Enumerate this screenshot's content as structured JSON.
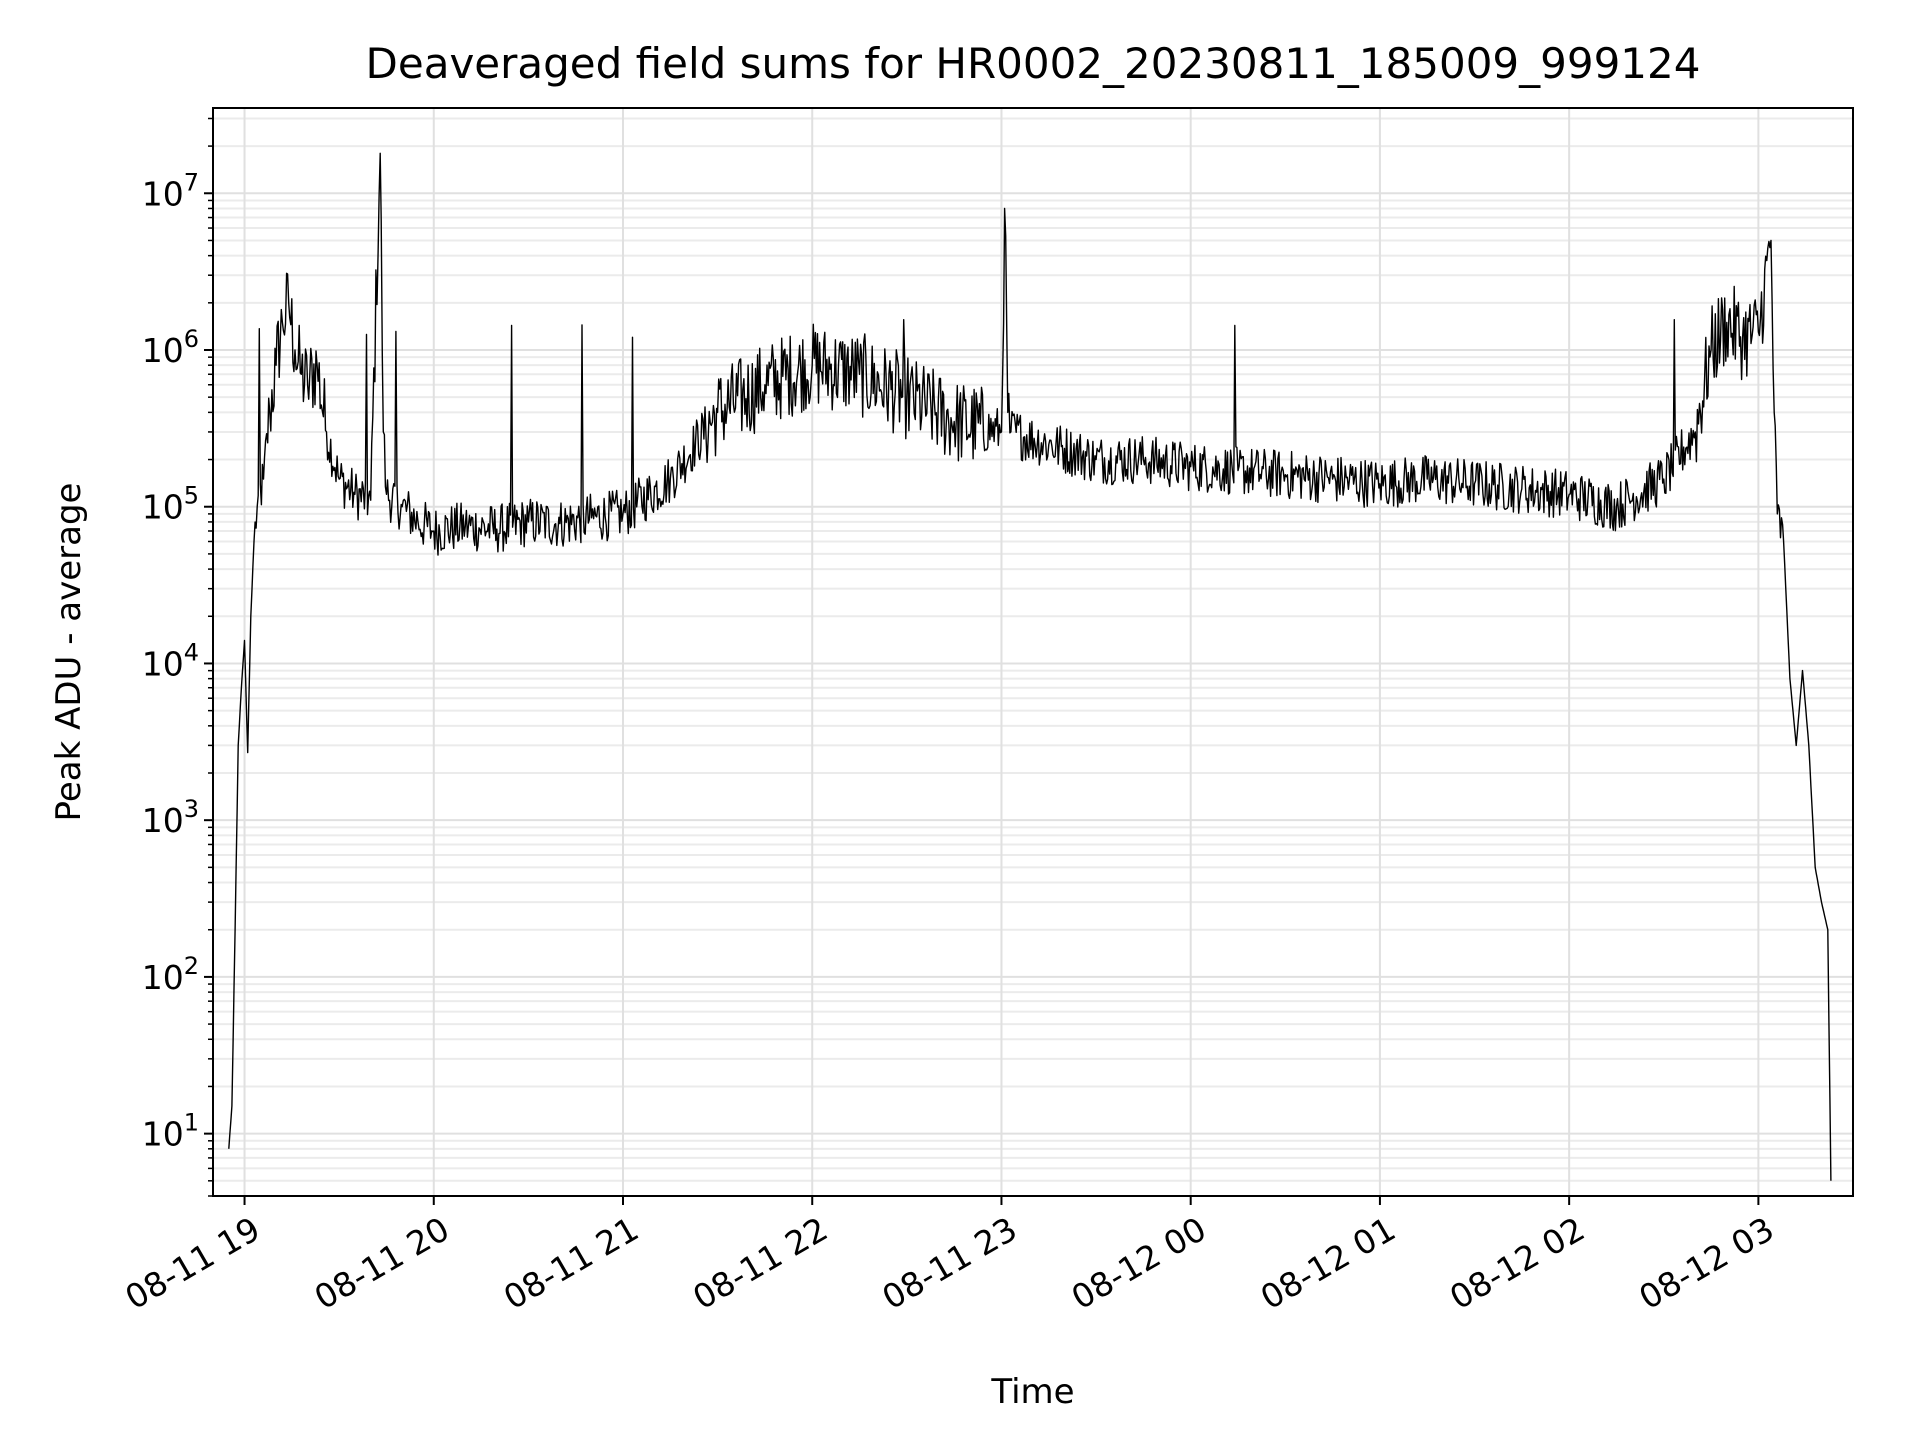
{
  "chart_data": {
    "type": "line",
    "title": "Deaveraged field sums for HR0002_20230811_185009_999124",
    "xlabel": "Time",
    "ylabel": "Peak ADU - average",
    "yscale": "log",
    "grid": true,
    "xlim": [
      "2023-08-11 18:50",
      "2023-08-12 03:30"
    ],
    "ylim": [
      4,
      35000000
    ],
    "x_ticks": [
      "08-11 19",
      "08-11 20",
      "08-11 21",
      "08-11 22",
      "08-11 23",
      "08-12 00",
      "08-12 01",
      "08-12 02",
      "08-12 03"
    ],
    "y_ticks": [
      {
        "base": "10",
        "exp": "1",
        "value": 10
      },
      {
        "base": "10",
        "exp": "2",
        "value": 100
      },
      {
        "base": "10",
        "exp": "3",
        "value": 1000
      },
      {
        "base": "10",
        "exp": "4",
        "value": 10000
      },
      {
        "base": "10",
        "exp": "5",
        "value": 100000
      },
      {
        "base": "10",
        "exp": "6",
        "value": 1000000
      },
      {
        "base": "10",
        "exp": "7",
        "value": 10000000
      }
    ],
    "line_color": "#000000",
    "series": [
      {
        "x": [
          "2023-08-11 18:55",
          "2023-08-11 18:56",
          "2023-08-11 18:57",
          "2023-08-11 18:58",
          "2023-08-11 18:59",
          "2023-08-11 19:00",
          "2023-08-11 19:01",
          "2023-08-11 19:02",
          "2023-08-11 19:03",
          "2023-08-11 19:04",
          "2023-08-11 19:06",
          "2023-08-11 19:08",
          "2023-08-11 19:10",
          "2023-08-11 19:12",
          "2023-08-11 19:14",
          "2023-08-11 19:16",
          "2023-08-11 19:18",
          "2023-08-11 19:20",
          "2023-08-11 19:23",
          "2023-08-11 19:26",
          "2023-08-11 19:30",
          "2023-08-11 19:35",
          "2023-08-11 19:40",
          "2023-08-11 19:43",
          "2023-08-11 19:44",
          "2023-08-11 19:45",
          "2023-08-11 19:50",
          "2023-08-11 19:55",
          "2023-08-11 20:00",
          "2023-08-11 20:10",
          "2023-08-11 20:20",
          "2023-08-11 20:30",
          "2023-08-11 20:40",
          "2023-08-11 20:50",
          "2023-08-11 21:00",
          "2023-08-11 21:15",
          "2023-08-11 21:30",
          "2023-08-11 21:45",
          "2023-08-11 22:00",
          "2023-08-11 22:15",
          "2023-08-11 22:30",
          "2023-08-11 22:45",
          "2023-08-11 23:00",
          "2023-08-11 23:01",
          "2023-08-11 23:02",
          "2023-08-11 23:03",
          "2023-08-11 23:15",
          "2023-08-11 23:30",
          "2023-08-11 23:45",
          "2023-08-12 00:00",
          "2023-08-12 00:15",
          "2023-08-12 00:30",
          "2023-08-12 00:45",
          "2023-08-12 01:00",
          "2023-08-12 01:15",
          "2023-08-12 01:30",
          "2023-08-12 01:45",
          "2023-08-12 02:00",
          "2023-08-12 02:15",
          "2023-08-12 02:30",
          "2023-08-12 02:40",
          "2023-08-12 02:45",
          "2023-08-12 02:50",
          "2023-08-12 02:55",
          "2023-08-12 03:00",
          "2023-08-12 03:04",
          "2023-08-12 03:05",
          "2023-08-12 03:06",
          "2023-08-12 03:08",
          "2023-08-12 03:10",
          "2023-08-12 03:12",
          "2023-08-12 03:14",
          "2023-08-12 03:16",
          "2023-08-12 03:18",
          "2023-08-12 03:20",
          "2023-08-12 03:22",
          "2023-08-12 03:23"
        ],
        "y": [
          8,
          15,
          200,
          3000,
          7000,
          14000,
          2700,
          20000,
          60000,
          100000,
          150000,
          400000,
          800000,
          1500000,
          2000000,
          1000000,
          700000,
          600000,
          800000,
          300000,
          150000,
          120000,
          110000,
          18000000,
          300000,
          120000,
          100000,
          80000,
          70000,
          75000,
          72000,
          80000,
          78000,
          85000,
          90000,
          150000,
          400000,
          600000,
          800000,
          700000,
          500000,
          350000,
          300000,
          8000000,
          400000,
          300000,
          250000,
          200000,
          200000,
          180000,
          170000,
          160000,
          150000,
          140000,
          150000,
          140000,
          130000,
          120000,
          100000,
          150000,
          300000,
          1000000,
          1500000,
          1200000,
          1300000,
          5000000,
          400000,
          90000,
          60000,
          8000,
          3000,
          9000,
          3000,
          500,
          300,
          200,
          5
        ]
      }
    ]
  }
}
